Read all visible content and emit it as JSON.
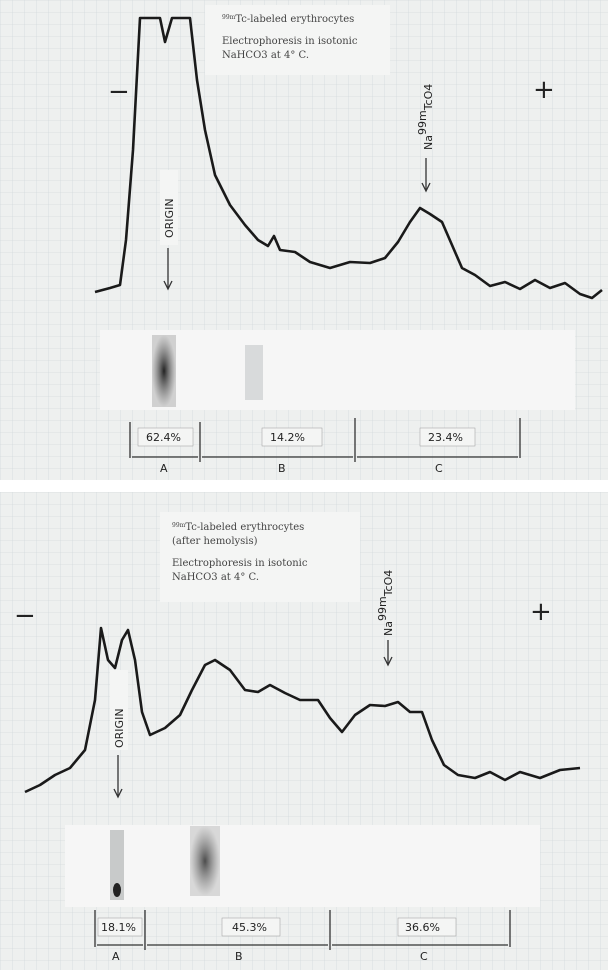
{
  "panels": [
    {
      "title": {
        "sup": "99m",
        "text": "Tc-labeled erythrocytes"
      },
      "lines": [
        "Electrophoresis in isotonic",
        "NaHCO3 at 4° C."
      ],
      "minus": "−",
      "plus": "+",
      "origin": "ORIGIN",
      "marker": {
        "pre": "Na",
        "sup": "99m",
        "post": "TcO4"
      },
      "fractions": [
        {
          "percent": "62.4%",
          "label": "A"
        },
        {
          "percent": "14.2%",
          "label": "B"
        },
        {
          "percent": "23.4%",
          "label": "C"
        }
      ]
    },
    {
      "title": {
        "sup": "99m",
        "text": "Tc-labeled erythrocytes"
      },
      "lines": [
        "(after hemolysis)",
        "Electrophoresis in isotonic",
        "NaHCO3 at 4° C."
      ],
      "minus": "−",
      "plus": "+",
      "origin": "ORIGIN",
      "marker": {
        "pre": "Na",
        "sup": "99m",
        "post": "TcO4"
      },
      "fractions": [
        {
          "percent": "18.1%",
          "label": "A"
        },
        {
          "percent": "45.3%",
          "label": "B"
        },
        {
          "percent": "36.6%",
          "label": "C"
        }
      ]
    }
  ]
}
